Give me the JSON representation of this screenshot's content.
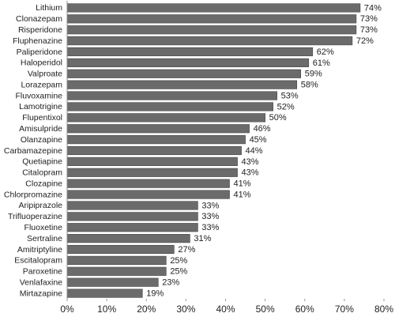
{
  "chart_data": {
    "type": "bar",
    "orientation": "horizontal",
    "color": "#6b6b6b",
    "categories": [
      "Lithium",
      "Clonazepam",
      "Risperidone",
      "Fluphenazine",
      "Paliperidone",
      "Haloperidol",
      "Valproate",
      "Lorazepam",
      "Fluvoxamine",
      "Lamotrigine",
      "Flupentixol",
      "Amisulpride",
      "Olanzapine",
      "Carbamazepine",
      "Quetiapine",
      "Citalopram",
      "Clozapine",
      "Chlorpromazine",
      "Aripiprazole",
      "Trifluoperazine",
      "Fluoxetine",
      "Sertraline",
      "Amitriptyline",
      "Escitalopram",
      "Paroxetine",
      "Venlafaxine",
      "Mirtazapine"
    ],
    "values": [
      74,
      73,
      73,
      72,
      62,
      61,
      59,
      58,
      53,
      52,
      50,
      46,
      45,
      44,
      43,
      43,
      41,
      41,
      33,
      33,
      33,
      31,
      27,
      25,
      25,
      23,
      19
    ],
    "value_labels": [
      "74%",
      "73%",
      "73%",
      "72%",
      "62%",
      "61%",
      "59%",
      "58%",
      "53%",
      "52%",
      "50%",
      "46%",
      "45%",
      "44%",
      "43%",
      "43%",
      "41%",
      "41%",
      "33%",
      "33%",
      "33%",
      "31%",
      "27%",
      "25%",
      "25%",
      "23%",
      "19%"
    ],
    "xlim": [
      0,
      80
    ],
    "xticks": [
      {
        "value": 0,
        "label": "0%"
      },
      {
        "value": 10,
        "label": "10%"
      },
      {
        "value": 20,
        "label": "20%"
      },
      {
        "value": 30,
        "label": "30%"
      },
      {
        "value": 40,
        "label": "40%"
      },
      {
        "value": 50,
        "label": "50%"
      },
      {
        "value": 60,
        "label": "60%"
      },
      {
        "value": 70,
        "label": "70%"
      },
      {
        "value": 80,
        "label": "80%"
      }
    ],
    "grid": false
  }
}
